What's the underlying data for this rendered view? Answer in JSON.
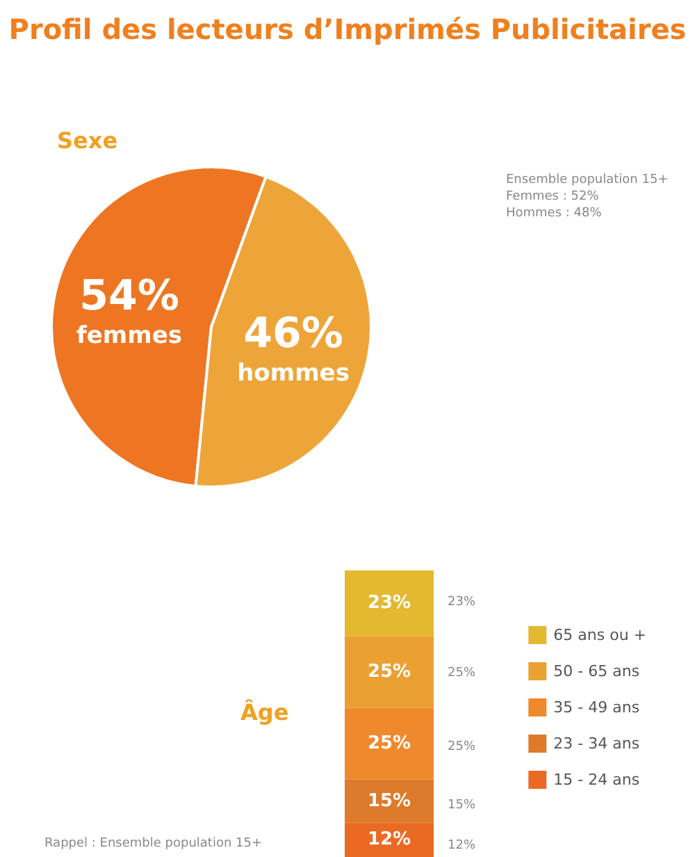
{
  "chart_data": [
    {
      "type": "pie",
      "title": "Profil des lecteurs d’Imprimés Publicitaires",
      "subtitle": "Sexe",
      "categories": [
        "femmes",
        "hommes"
      ],
      "values": [
        54,
        46
      ],
      "value_labels": [
        "54%",
        "46%"
      ],
      "colors": [
        "#ee7623",
        "#eda53a"
      ],
      "data_labels": true,
      "legend": false,
      "annotations": [
        "Ensemble population 15+",
        "Femmes : 52%",
        "Hommes : 48%"
      ]
    },
    {
      "type": "bar",
      "title": "Âge",
      "categories": [
        null
      ],
      "stacked": true,
      "data_labels": true,
      "legend": "right",
      "series": [
        {
          "name": "15 - 24 ans",
          "color": "#ea6a24",
          "values": [
            12
          ],
          "value_labels": [
            "12%"
          ]
        },
        {
          "name": "23 - 34 ans",
          "color": "#dd7a2b",
          "values": [
            15
          ],
          "value_labels": [
            "15%"
          ]
        },
        {
          "name": "35 - 49 ans",
          "color": "#ef8a2c",
          "values": [
            25
          ],
          "value_labels": [
            "25%"
          ]
        },
        {
          "name": "50 - 65 ans",
          "color": "#eba032",
          "values": [
            25
          ],
          "value_labels": [
            "25%"
          ]
        },
        {
          "name": "65 ans ou +",
          "color": "#e3b92f",
          "values": [
            23
          ],
          "value_labels": [
            "23%"
          ]
        }
      ],
      "annotations": [
        "Rappel : Ensemble population 15+"
      ]
    }
  ]
}
